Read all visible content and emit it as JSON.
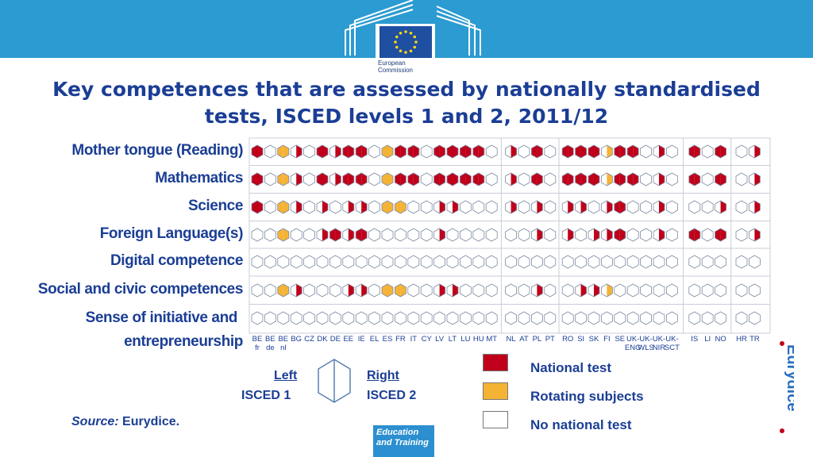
{
  "header": {
    "logo_text": "European\nCommission",
    "colors": {
      "band": "#2b9bd1",
      "text": "#1b3e95"
    }
  },
  "title": "Key competences that are assessed by nationally standardised tests, ISCED levels 1 and 2, 2011/12",
  "legend": {
    "left_label": "Left",
    "left_sub": "ISCED 1",
    "right_label": "Right",
    "right_sub": "ISCED 2",
    "items": [
      {
        "label": "National test",
        "color": "#c0001a"
      },
      {
        "label": "Rotating subjects",
        "color": "#f5b335"
      },
      {
        "label": "No national test",
        "color": "#ffffff"
      }
    ]
  },
  "source": {
    "prefix": "Source:",
    "text": "Eurydice."
  },
  "brand": {
    "eurydice": "Eurydice",
    "education_badge": "Education and Training"
  },
  "chart_data": {
    "type": "table",
    "encoding": {
      "N": "National test",
      "R": "Rotating subjects",
      "-": "No national test"
    },
    "countries": [
      {
        "code": "BE",
        "sub": "fr"
      },
      {
        "code": "BE",
        "sub": "de"
      },
      {
        "code": "BE",
        "sub": "nl"
      },
      {
        "code": "BG",
        "sub": ""
      },
      {
        "code": "CZ",
        "sub": ""
      },
      {
        "code": "DK",
        "sub": ""
      },
      {
        "code": "DE",
        "sub": ""
      },
      {
        "code": "EE",
        "sub": ""
      },
      {
        "code": "IE",
        "sub": ""
      },
      {
        "code": "EL",
        "sub": ""
      },
      {
        "code": "ES",
        "sub": ""
      },
      {
        "code": "FR",
        "sub": ""
      },
      {
        "code": "IT",
        "sub": ""
      },
      {
        "code": "CY",
        "sub": ""
      },
      {
        "code": "LV",
        "sub": ""
      },
      {
        "code": "LT",
        "sub": ""
      },
      {
        "code": "LU",
        "sub": ""
      },
      {
        "code": "HU",
        "sub": ""
      },
      {
        "code": "MT",
        "sub": ""
      },
      {
        "code": "NL",
        "sub": ""
      },
      {
        "code": "AT",
        "sub": ""
      },
      {
        "code": "PL",
        "sub": ""
      },
      {
        "code": "PT",
        "sub": ""
      },
      {
        "code": "RO",
        "sub": ""
      },
      {
        "code": "SI",
        "sub": ""
      },
      {
        "code": "SK",
        "sub": ""
      },
      {
        "code": "FI",
        "sub": ""
      },
      {
        "code": "SE",
        "sub": ""
      },
      {
        "code": "UK-",
        "sub": "ENG"
      },
      {
        "code": "UK-",
        "sub": "WLS"
      },
      {
        "code": "UK-",
        "sub": "NIR"
      },
      {
        "code": "UK-",
        "sub": "SCT"
      },
      {
        "code": "IS",
        "sub": ""
      },
      {
        "code": "LI",
        "sub": ""
      },
      {
        "code": "NO",
        "sub": ""
      },
      {
        "code": "HR",
        "sub": ""
      },
      {
        "code": "TR",
        "sub": ""
      }
    ],
    "competences": [
      {
        "name": "Mother tongue (Reading)",
        "cells": [
          [
            "N",
            "N"
          ],
          [
            "-",
            "-"
          ],
          [
            "R",
            "R"
          ],
          [
            "-",
            "N"
          ],
          [
            "-",
            "-"
          ],
          [
            "N",
            "N"
          ],
          [
            "-",
            "N"
          ],
          [
            "N",
            "N"
          ],
          [
            "N",
            "N"
          ],
          [
            "-",
            "-"
          ],
          [
            "R",
            "R"
          ],
          [
            "N",
            "N"
          ],
          [
            "N",
            "N"
          ],
          [
            "-",
            "-"
          ],
          [
            "N",
            "N"
          ],
          [
            "N",
            "N"
          ],
          [
            "N",
            "N"
          ],
          [
            "N",
            "N"
          ],
          [
            "-",
            "-"
          ],
          [
            "-",
            "N"
          ],
          [
            "-",
            "-"
          ],
          [
            "N",
            "N"
          ],
          [
            "-",
            "-"
          ],
          [
            "N",
            "N"
          ],
          [
            "N",
            "N"
          ],
          [
            "N",
            "N"
          ],
          [
            "-",
            "R"
          ],
          [
            "N",
            "N"
          ],
          [
            "N",
            "N"
          ],
          [
            "-",
            "-"
          ],
          [
            "-",
            "N"
          ],
          [
            "-",
            "-"
          ],
          [
            "N",
            "N"
          ],
          [
            "-",
            "-"
          ],
          [
            "N",
            "N"
          ],
          [
            "-",
            "-"
          ],
          [
            "-",
            "N"
          ]
        ]
      },
      {
        "name": "Mathematics",
        "cells": [
          [
            "N",
            "N"
          ],
          [
            "-",
            "-"
          ],
          [
            "R",
            "R"
          ],
          [
            "-",
            "N"
          ],
          [
            "-",
            "-"
          ],
          [
            "N",
            "N"
          ],
          [
            "-",
            "N"
          ],
          [
            "N",
            "N"
          ],
          [
            "N",
            "N"
          ],
          [
            "-",
            "-"
          ],
          [
            "R",
            "R"
          ],
          [
            "N",
            "N"
          ],
          [
            "N",
            "N"
          ],
          [
            "-",
            "-"
          ],
          [
            "N",
            "N"
          ],
          [
            "N",
            "N"
          ],
          [
            "N",
            "N"
          ],
          [
            "N",
            "N"
          ],
          [
            "-",
            "-"
          ],
          [
            "-",
            "N"
          ],
          [
            "-",
            "-"
          ],
          [
            "N",
            "N"
          ],
          [
            "-",
            "-"
          ],
          [
            "N",
            "N"
          ],
          [
            "N",
            "N"
          ],
          [
            "N",
            "N"
          ],
          [
            "-",
            "R"
          ],
          [
            "N",
            "N"
          ],
          [
            "N",
            "N"
          ],
          [
            "-",
            "-"
          ],
          [
            "-",
            "N"
          ],
          [
            "-",
            "-"
          ],
          [
            "N",
            "N"
          ],
          [
            "-",
            "-"
          ],
          [
            "N",
            "N"
          ],
          [
            "-",
            "-"
          ],
          [
            "-",
            "N"
          ]
        ]
      },
      {
        "name": "Science",
        "cells": [
          [
            "N",
            "N"
          ],
          [
            "-",
            "-"
          ],
          [
            "R",
            "R"
          ],
          [
            "-",
            "N"
          ],
          [
            "-",
            "-"
          ],
          [
            "-",
            "N"
          ],
          [
            "-",
            "-"
          ],
          [
            "-",
            "N"
          ],
          [
            "-",
            "N"
          ],
          [
            "-",
            "-"
          ],
          [
            "R",
            "R"
          ],
          [
            "R",
            "R"
          ],
          [
            "-",
            "-"
          ],
          [
            "-",
            "-"
          ],
          [
            "-",
            "N"
          ],
          [
            "-",
            "N"
          ],
          [
            "-",
            "-"
          ],
          [
            "-",
            "-"
          ],
          [
            "-",
            "-"
          ],
          [
            "-",
            "N"
          ],
          [
            "-",
            "-"
          ],
          [
            "-",
            "N"
          ],
          [
            "-",
            "-"
          ],
          [
            "-",
            "N"
          ],
          [
            "-",
            "N"
          ],
          [
            "-",
            "-"
          ],
          [
            "-",
            "N"
          ],
          [
            "N",
            "N"
          ],
          [
            "-",
            "-"
          ],
          [
            "-",
            "-"
          ],
          [
            "-",
            "N"
          ],
          [
            "-",
            "-"
          ],
          [
            "-",
            "-"
          ],
          [
            "-",
            "-"
          ],
          [
            "-",
            "N"
          ],
          [
            "-",
            "-"
          ],
          [
            "-",
            "N"
          ]
        ]
      },
      {
        "name": "Foreign Language(s)",
        "cells": [
          [
            "-",
            "-"
          ],
          [
            "-",
            "-"
          ],
          [
            "R",
            "R"
          ],
          [
            "-",
            "-"
          ],
          [
            "-",
            "-"
          ],
          [
            "-",
            "N"
          ],
          [
            "N",
            "N"
          ],
          [
            "-",
            "N"
          ],
          [
            "N",
            "N"
          ],
          [
            "-",
            "-"
          ],
          [
            "-",
            "-"
          ],
          [
            "-",
            "-"
          ],
          [
            "-",
            "-"
          ],
          [
            "-",
            "-"
          ],
          [
            "-",
            "N"
          ],
          [
            "-",
            "-"
          ],
          [
            "-",
            "-"
          ],
          [
            "-",
            "-"
          ],
          [
            "-",
            "-"
          ],
          [
            "-",
            "-"
          ],
          [
            "-",
            "-"
          ],
          [
            "-",
            "N"
          ],
          [
            "-",
            "-"
          ],
          [
            "-",
            "N"
          ],
          [
            "-",
            "-"
          ],
          [
            "-",
            "N"
          ],
          [
            "-",
            "N"
          ],
          [
            "N",
            "N"
          ],
          [
            "-",
            "-"
          ],
          [
            "-",
            "-"
          ],
          [
            "-",
            "N"
          ],
          [
            "-",
            "-"
          ],
          [
            "N",
            "N"
          ],
          [
            "-",
            "-"
          ],
          [
            "N",
            "N"
          ],
          [
            "-",
            "-"
          ],
          [
            "-",
            "N"
          ]
        ]
      },
      {
        "name": "Digital competence",
        "cells": [
          [
            "-",
            "-"
          ],
          [
            "-",
            "-"
          ],
          [
            "-",
            "-"
          ],
          [
            "-",
            "-"
          ],
          [
            "-",
            "-"
          ],
          [
            "-",
            "-"
          ],
          [
            "-",
            "-"
          ],
          [
            "-",
            "-"
          ],
          [
            "-",
            "-"
          ],
          [
            "-",
            "-"
          ],
          [
            "-",
            "-"
          ],
          [
            "-",
            "-"
          ],
          [
            "-",
            "-"
          ],
          [
            "-",
            "-"
          ],
          [
            "-",
            "-"
          ],
          [
            "-",
            "-"
          ],
          [
            "-",
            "-"
          ],
          [
            "-",
            "-"
          ],
          [
            "-",
            "-"
          ],
          [
            "-",
            "-"
          ],
          [
            "-",
            "-"
          ],
          [
            "-",
            "-"
          ],
          [
            "-",
            "-"
          ],
          [
            "-",
            "-"
          ],
          [
            "-",
            "-"
          ],
          [
            "-",
            "-"
          ],
          [
            "-",
            "-"
          ],
          [
            "-",
            "-"
          ],
          [
            "-",
            "-"
          ],
          [
            "-",
            "-"
          ],
          [
            "-",
            "-"
          ],
          [
            "-",
            "-"
          ],
          [
            "-",
            "-"
          ],
          [
            "-",
            "-"
          ],
          [
            "-",
            "-"
          ],
          [
            "-",
            "-"
          ],
          [
            "-",
            "-"
          ]
        ]
      },
      {
        "name": "Social and civic competences",
        "cells": [
          [
            "-",
            "-"
          ],
          [
            "-",
            "-"
          ],
          [
            "R",
            "R"
          ],
          [
            "-",
            "N"
          ],
          [
            "-",
            "-"
          ],
          [
            "-",
            "-"
          ],
          [
            "-",
            "-"
          ],
          [
            "-",
            "N"
          ],
          [
            "-",
            "N"
          ],
          [
            "-",
            "-"
          ],
          [
            "R",
            "R"
          ],
          [
            "R",
            "R"
          ],
          [
            "-",
            "-"
          ],
          [
            "-",
            "-"
          ],
          [
            "-",
            "N"
          ],
          [
            "-",
            "N"
          ],
          [
            "-",
            "-"
          ],
          [
            "-",
            "-"
          ],
          [
            "-",
            "-"
          ],
          [
            "-",
            "-"
          ],
          [
            "-",
            "-"
          ],
          [
            "-",
            "N"
          ],
          [
            "-",
            "-"
          ],
          [
            "-",
            "-"
          ],
          [
            "-",
            "N"
          ],
          [
            "-",
            "N"
          ],
          [
            "-",
            "R"
          ],
          [
            "-",
            "-"
          ],
          [
            "-",
            "-"
          ],
          [
            "-",
            "-"
          ],
          [
            "-",
            "-"
          ],
          [
            "-",
            "-"
          ],
          [
            "-",
            "-"
          ],
          [
            "-",
            "-"
          ],
          [
            "-",
            "-"
          ],
          [
            "-",
            "-"
          ],
          [
            "-",
            "-"
          ]
        ]
      },
      {
        "name": "Sense of initiative and entrepreneurship",
        "cells": [
          [
            "-",
            "-"
          ],
          [
            "-",
            "-"
          ],
          [
            "-",
            "-"
          ],
          [
            "-",
            "-"
          ],
          [
            "-",
            "-"
          ],
          [
            "-",
            "-"
          ],
          [
            "-",
            "-"
          ],
          [
            "-",
            "-"
          ],
          [
            "-",
            "-"
          ],
          [
            "-",
            "-"
          ],
          [
            "-",
            "-"
          ],
          [
            "-",
            "-"
          ],
          [
            "-",
            "-"
          ],
          [
            "-",
            "-"
          ],
          [
            "-",
            "-"
          ],
          [
            "-",
            "-"
          ],
          [
            "-",
            "-"
          ],
          [
            "-",
            "-"
          ],
          [
            "-",
            "-"
          ],
          [
            "-",
            "-"
          ],
          [
            "-",
            "-"
          ],
          [
            "-",
            "-"
          ],
          [
            "-",
            "-"
          ],
          [
            "-",
            "-"
          ],
          [
            "-",
            "-"
          ],
          [
            "-",
            "-"
          ],
          [
            "-",
            "-"
          ],
          [
            "-",
            "-"
          ],
          [
            "-",
            "-"
          ],
          [
            "-",
            "-"
          ],
          [
            "-",
            "-"
          ],
          [
            "-",
            "-"
          ],
          [
            "-",
            "-"
          ],
          [
            "-",
            "-"
          ],
          [
            "-",
            "-"
          ],
          [
            "-",
            "-"
          ],
          [
            "-",
            "-"
          ]
        ]
      }
    ]
  }
}
